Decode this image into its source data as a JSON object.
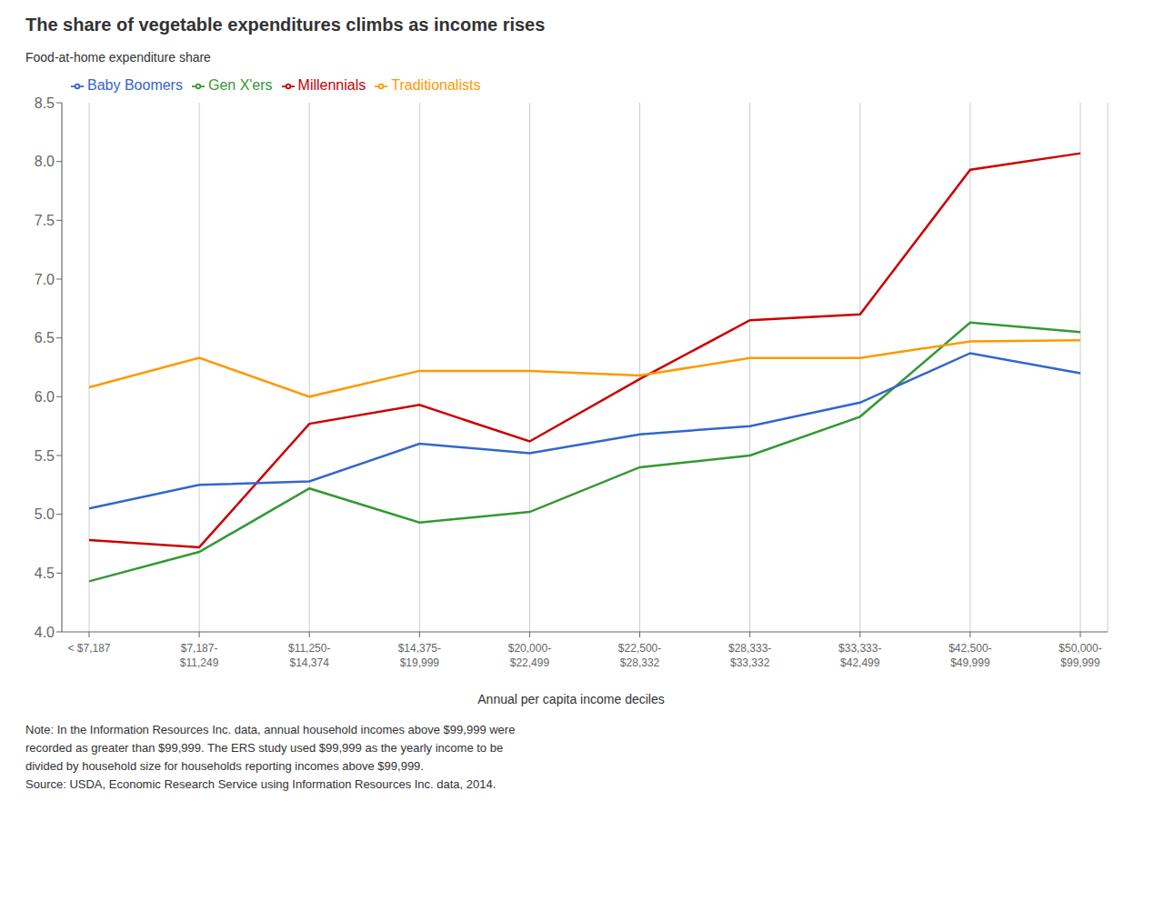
{
  "chart_data": {
    "type": "line",
    "title": "The share of vegetable expenditures climbs as income rises",
    "ylabel": "Food-at-home expenditure share",
    "xlabel": "Annual per capita income deciles",
    "categories": [
      "< $7,187",
      "$7,187-\n$11,249",
      "$11,250-\n$14,374",
      "$14,375-\n$19,999",
      "$20,000-\n$22,499",
      "$22,500-\n$28,332",
      "$28,333-\n$33,332",
      "$33,333-\n$42,499",
      "$42,500-\n$49,999",
      "$50,000-\n$99,999"
    ],
    "series": [
      {
        "name": "Millennials",
        "color": "#CC0000",
        "values": [
          4.78,
          4.72,
          5.77,
          5.93,
          5.62,
          6.15,
          6.65,
          6.7,
          7.93,
          8.07
        ]
      },
      {
        "name": "Gen X'ers",
        "color": "#339933",
        "values": [
          4.43,
          4.68,
          5.22,
          4.93,
          5.02,
          5.4,
          5.5,
          5.83,
          6.63,
          6.55
        ]
      },
      {
        "name": "Baby Boomers",
        "color": "#3366CC",
        "values": [
          5.05,
          5.25,
          5.28,
          5.6,
          5.52,
          5.68,
          5.75,
          5.95,
          6.37,
          6.2
        ]
      },
      {
        "name": "Traditionalists",
        "color": "#FF9900",
        "values": [
          6.08,
          6.33,
          6.0,
          6.22,
          6.22,
          6.18,
          6.33,
          6.33,
          6.47,
          6.48
        ]
      }
    ],
    "ylim": [
      4.0,
      8.5
    ],
    "yticks": [
      {
        "value": 4.0,
        "label": "4.0"
      },
      4.5,
      {
        "value": 5.0,
        "label": "5.0"
      },
      5.5,
      {
        "value": 6.0,
        "label": "6.0"
      },
      6.5,
      {
        "value": 7.0,
        "label": "7.0"
      },
      7.5,
      {
        "value": 8.0,
        "label": "8.0"
      },
      8.5
    ],
    "grid": "x",
    "legend": "upper left",
    "annotations": [
      "Note: In the Information Resources Inc. data, annual household incomes above $99,999 were",
      "recorded as greater than $99,999. The ERS study used $99,999 as the yearly income to be",
      "divided by household size for households reporting incomes above $99,999.",
      "Source: USDA, Economic Research Service using Information Resources Inc. data, 2014."
    ]
  }
}
